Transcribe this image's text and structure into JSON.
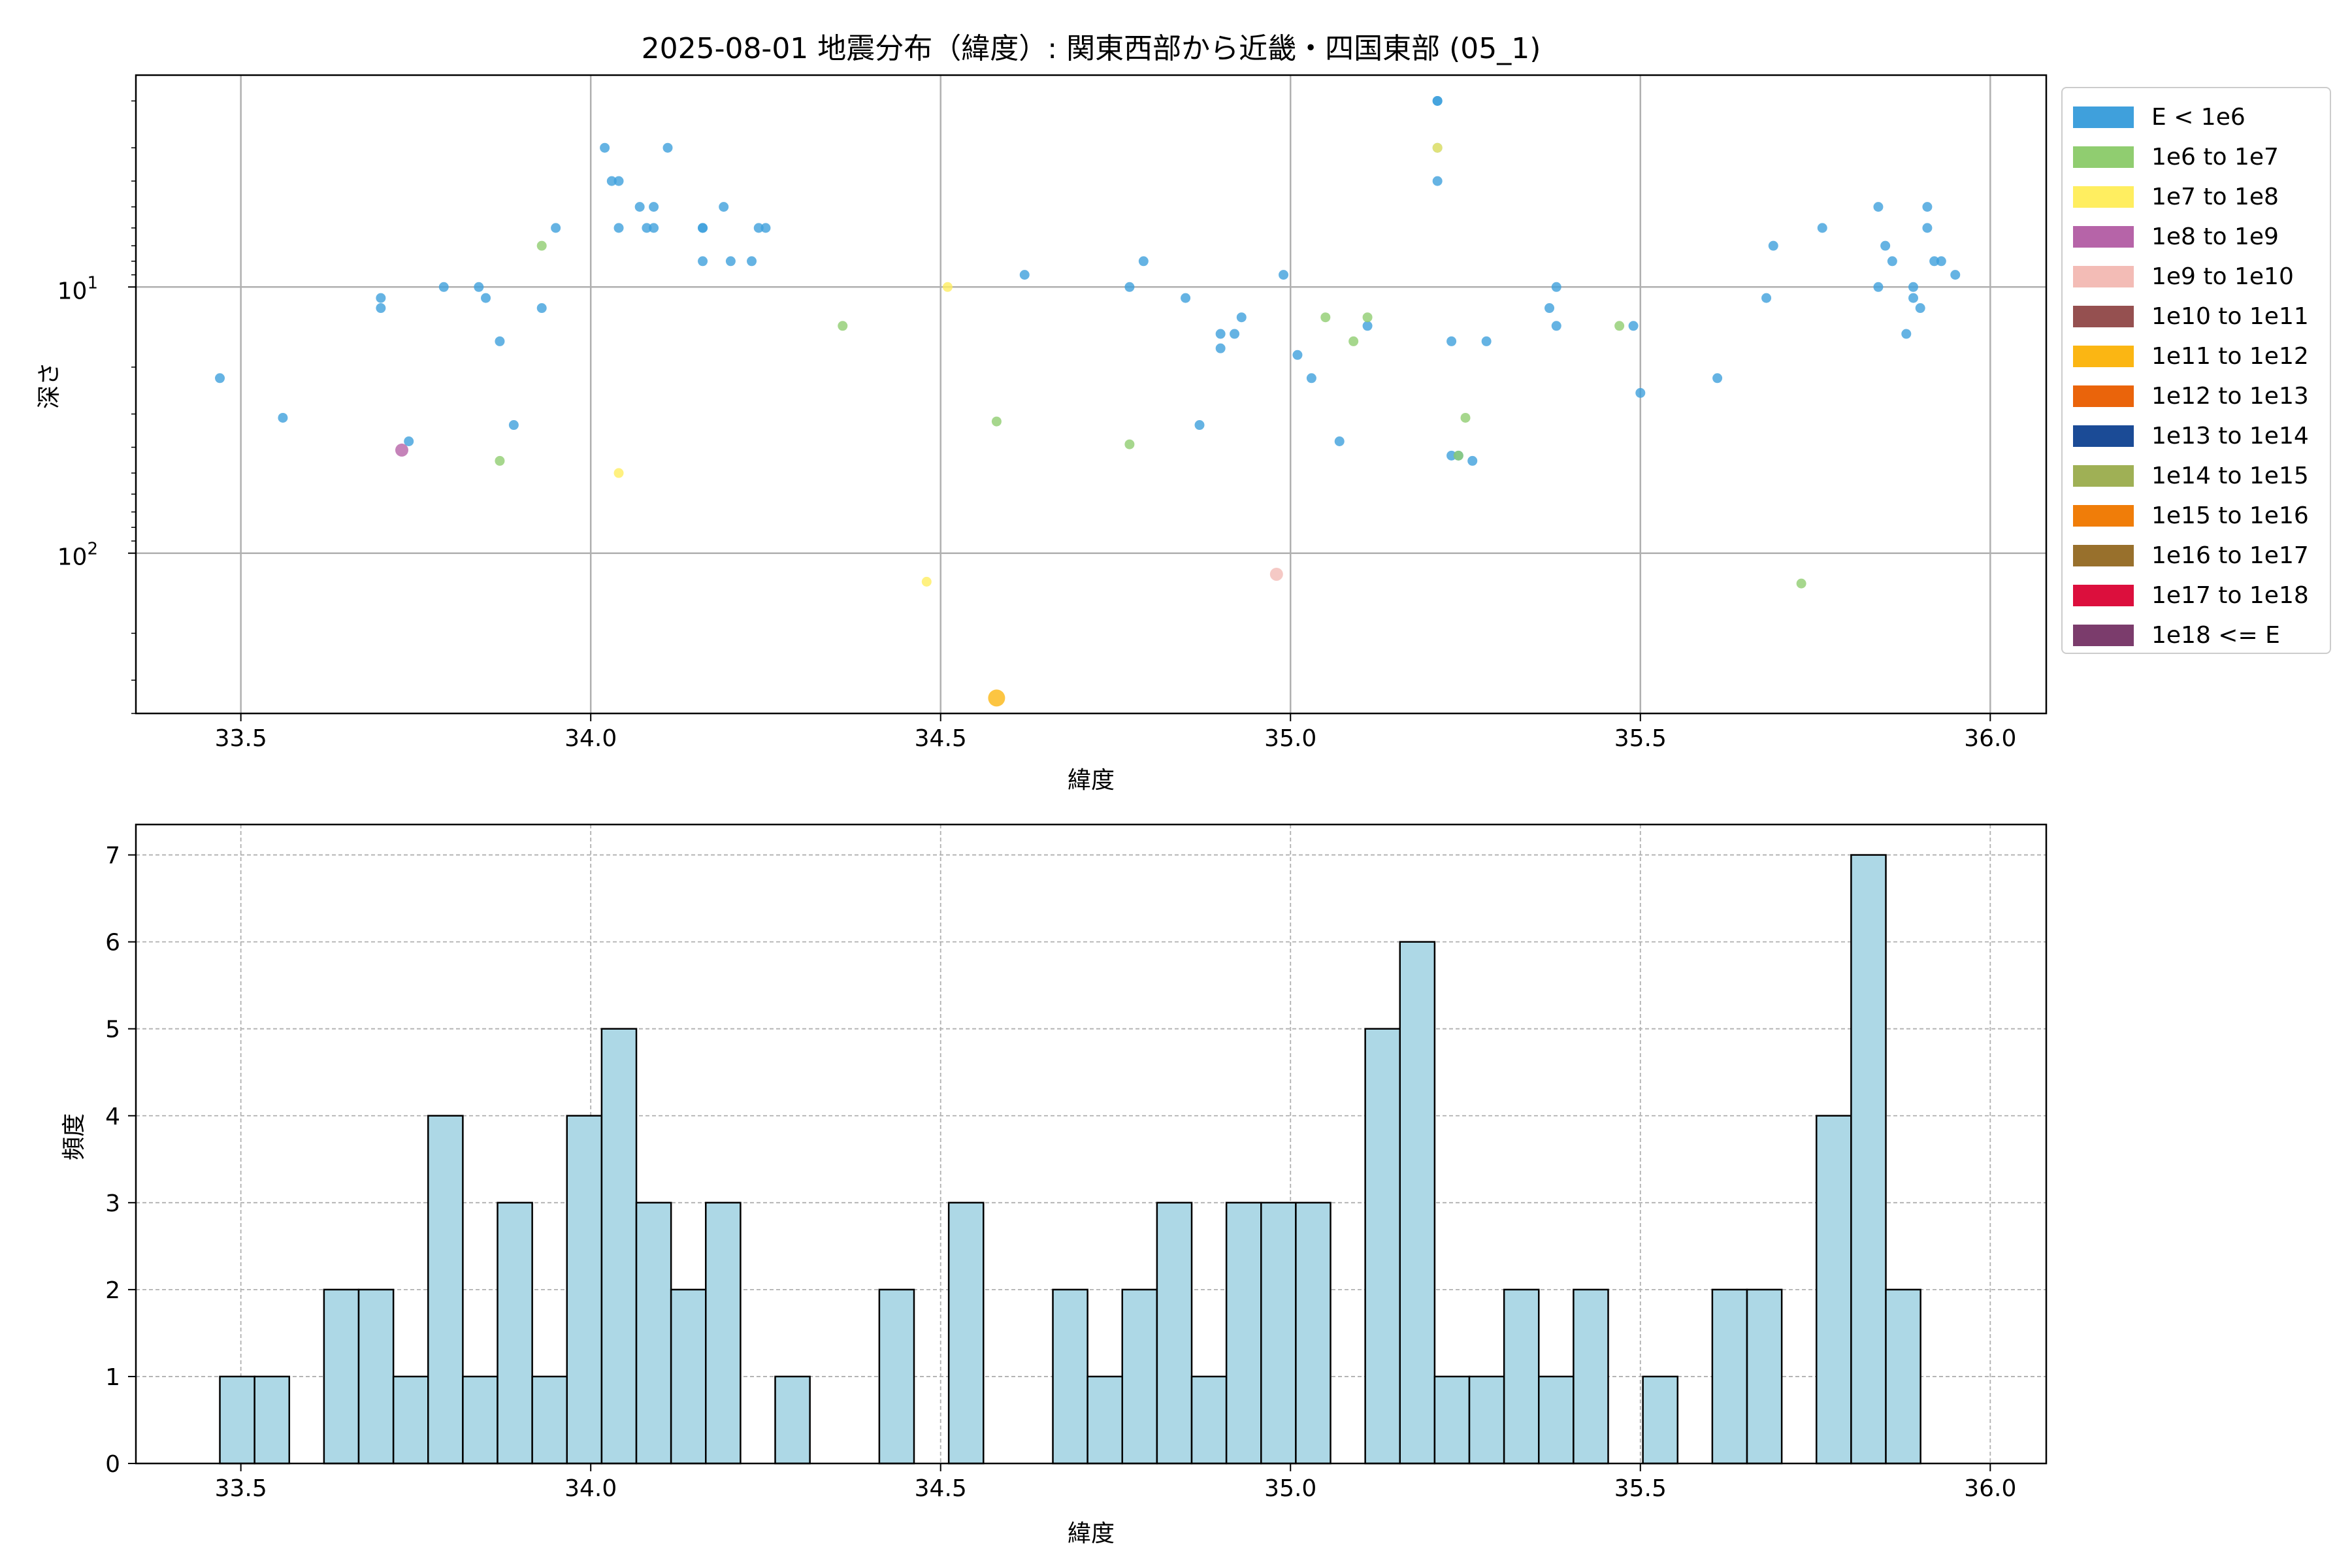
{
  "chart_data": [
    {
      "type": "scatter",
      "title": "2025-08-01 地震分布（緯度）: 関東西部から近畿・四国東部 (05_1)",
      "xlabel": "緯度",
      "ylabel": "深さ",
      "xlim": [
        33.35,
        36.08
      ],
      "ylim": [
        400,
        1.6
      ],
      "y_scale": "log",
      "y_inverted": true,
      "x_ticks": [
        "33.5",
        "34.0",
        "34.5",
        "35.0",
        "35.5",
        "36.0"
      ],
      "y_ticks": [
        "10^1",
        "10^2"
      ],
      "grid": true,
      "legend_position": "outside right",
      "legend": [
        {
          "label": "E < 1e6",
          "color": "#3fa0dc"
        },
        {
          "label": "1e6 to 1e7",
          "color": "#90cd70"
        },
        {
          "label": "1e7 to 1e8",
          "color": "#ffee60"
        },
        {
          "label": "1e8 to 1e9",
          "color": "#b664a8"
        },
        {
          "label": "1e9 to 1e10",
          "color": "#f3bcb6"
        },
        {
          "label": "1e10 to 1e11",
          "color": "#955050"
        },
        {
          "label": "1e11 to 1e12",
          "color": "#fbb613"
        },
        {
          "label": "1e12 to 1e13",
          "color": "#ea640b"
        },
        {
          "label": "1e13 to 1e14",
          "color": "#1b4b96"
        },
        {
          "label": "1e14 to 1e15",
          "color": "#9fb055"
        },
        {
          "label": "1e15 to 1e16",
          "color": "#f07d09"
        },
        {
          "label": "1e16 to 1e17",
          "color": "#98702c"
        },
        {
          "label": "1e17 to 1e18",
          "color": "#dc0f3d"
        },
        {
          "label": "1e18 <= E",
          "color": "#7b3c6c"
        }
      ],
      "series": [
        {
          "name": "E < 1e6",
          "color": "#3fa0dc",
          "points": [
            [
              33.47,
              22
            ],
            [
              33.56,
              31
            ],
            [
              33.7,
              11
            ],
            [
              33.7,
              12
            ],
            [
              33.74,
              38
            ],
            [
              33.79,
              10
            ],
            [
              33.84,
              10
            ],
            [
              33.85,
              11
            ],
            [
              33.87,
              16
            ],
            [
              33.89,
              33
            ],
            [
              33.93,
              12
            ],
            [
              33.95,
              6
            ],
            [
              34.02,
              3
            ],
            [
              34.03,
              4
            ],
            [
              34.04,
              4
            ],
            [
              34.04,
              6
            ],
            [
              34.07,
              5
            ],
            [
              34.08,
              6
            ],
            [
              34.09,
              6
            ],
            [
              34.09,
              5
            ],
            [
              34.11,
              3
            ],
            [
              34.16,
              6
            ],
            [
              34.16,
              6
            ],
            [
              34.16,
              8
            ],
            [
              34.19,
              5
            ],
            [
              34.2,
              8
            ],
            [
              34.23,
              8
            ],
            [
              34.24,
              6
            ],
            [
              34.25,
              6
            ],
            [
              34.62,
              9
            ],
            [
              34.77,
              10
            ],
            [
              34.79,
              8
            ],
            [
              34.85,
              11
            ],
            [
              34.87,
              33
            ],
            [
              34.9,
              17
            ],
            [
              34.9,
              15
            ],
            [
              34.92,
              15
            ],
            [
              34.93,
              13
            ],
            [
              34.99,
              9
            ],
            [
              35.01,
              18
            ],
            [
              35.03,
              22
            ],
            [
              35.07,
              38
            ],
            [
              35.11,
              14
            ],
            [
              35.21,
              2
            ],
            [
              35.21,
              2
            ],
            [
              35.21,
              3
            ],
            [
              35.21,
              4
            ],
            [
              35.23,
              16
            ],
            [
              35.23,
              43
            ],
            [
              35.24,
              43
            ],
            [
              35.26,
              45
            ],
            [
              35.28,
              16
            ],
            [
              35.37,
              12
            ],
            [
              35.38,
              10
            ],
            [
              35.38,
              14
            ],
            [
              35.49,
              14
            ],
            [
              35.5,
              25
            ],
            [
              35.61,
              22
            ],
            [
              35.68,
              11
            ],
            [
              35.69,
              7
            ],
            [
              35.76,
              6
            ],
            [
              35.84,
              5
            ],
            [
              35.84,
              10
            ],
            [
              35.85,
              7
            ],
            [
              35.86,
              8
            ],
            [
              35.88,
              15
            ],
            [
              35.89,
              10
            ],
            [
              35.89,
              11
            ],
            [
              35.9,
              12
            ],
            [
              35.91,
              5
            ],
            [
              35.91,
              6
            ],
            [
              35.92,
              8
            ],
            [
              35.93,
              8
            ],
            [
              35.95,
              9
            ]
          ]
        },
        {
          "name": "1e6 to 1e7",
          "color": "#90cd70",
          "points": [
            [
              33.87,
              45
            ],
            [
              33.93,
              7
            ],
            [
              34.36,
              14
            ],
            [
              34.58,
              32
            ],
            [
              34.77,
              39
            ],
            [
              35.05,
              13
            ],
            [
              35.09,
              16
            ],
            [
              35.11,
              13
            ],
            [
              35.24,
              43
            ],
            [
              35.25,
              31
            ],
            [
              35.47,
              14
            ],
            [
              35.73,
              130
            ]
          ]
        },
        {
          "name": "1e7 to 1e8",
          "color": "#ffee60",
          "points": [
            [
              34.04,
              50
            ],
            [
              34.48,
              128
            ],
            [
              34.51,
              10
            ],
            [
              35.21,
              3
            ]
          ]
        },
        {
          "name": "1e8 to 1e9",
          "color": "#b664a8",
          "points": [
            [
              33.73,
              41
            ]
          ]
        },
        {
          "name": "1e9 to 1e10",
          "color": "#f3bcb6",
          "points": [
            [
              34.98,
              120
            ]
          ]
        },
        {
          "name": "1e11 to 1e12",
          "color": "#fbb613",
          "points": [
            [
              34.58,
              350
            ]
          ]
        }
      ]
    },
    {
      "type": "bar",
      "xlabel": "緯度",
      "ylabel": "頻度",
      "xlim": [
        33.35,
        36.08
      ],
      "ylim": [
        0,
        7.35
      ],
      "x_ticks": [
        "33.5",
        "34.0",
        "34.5",
        "35.0",
        "35.5",
        "36.0"
      ],
      "y_ticks": [
        "0",
        "1",
        "2",
        "3",
        "4",
        "5",
        "6",
        "7"
      ],
      "grid": true,
      "bar_color": "#add8e6",
      "bin_start": 33.47,
      "bin_width": 0.0496,
      "values": [
        1,
        1,
        0,
        2,
        2,
        1,
        4,
        1,
        3,
        1,
        4,
        5,
        3,
        2,
        3,
        0,
        1,
        0,
        0,
        2,
        0,
        3,
        0,
        0,
        2,
        1,
        2,
        3,
        1,
        3,
        3,
        3,
        0,
        5,
        6,
        1,
        1,
        2,
        1,
        2,
        0,
        1,
        0,
        2,
        2,
        0,
        4,
        7,
        2
      ]
    }
  ]
}
